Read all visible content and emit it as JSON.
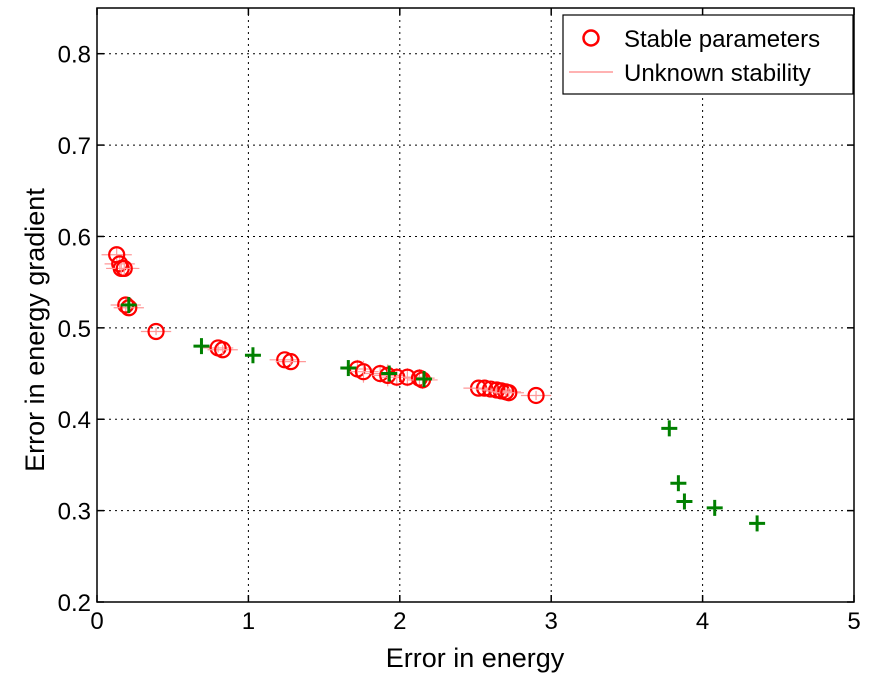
{
  "chart_data": {
    "type": "scatter",
    "xlabel": "Error in energy",
    "ylabel": "Error in energy gradient",
    "xlim": [
      0,
      5
    ],
    "ylim": [
      0.2,
      0.85
    ],
    "xticks": [
      0,
      1,
      2,
      3,
      4,
      5
    ],
    "yticks": [
      0.2,
      0.3,
      0.4,
      0.5,
      0.6,
      0.7,
      0.8
    ],
    "xtick_labels": [
      "0",
      "1",
      "2",
      "3",
      "4",
      "5"
    ],
    "ytick_labels": [
      "0.2",
      "0.3",
      "0.4",
      "0.5",
      "0.6",
      "0.7",
      "0.8"
    ],
    "grid": true,
    "legend_position": "top-right",
    "legend": [
      {
        "label": "Stable parameters",
        "marker": "circle",
        "color": "#ff0000"
      },
      {
        "label": "Unknown stability",
        "marker": "line",
        "color": "#ff9999"
      }
    ],
    "series": [
      {
        "name": "Stable parameters",
        "marker": "circle",
        "color": "#ff0000",
        "x": [
          0.13,
          0.15,
          0.16,
          0.18,
          0.19,
          0.21,
          0.39,
          0.8,
          0.83,
          1.24,
          1.28,
          1.72,
          1.76,
          1.87,
          1.92,
          1.98,
          2.05,
          2.13,
          2.15,
          2.52,
          2.56,
          2.6,
          2.64,
          2.67,
          2.7,
          2.72,
          2.9
        ],
        "y": [
          0.58,
          0.57,
          0.565,
          0.565,
          0.525,
          0.522,
          0.496,
          0.478,
          0.476,
          0.465,
          0.463,
          0.455,
          0.452,
          0.45,
          0.448,
          0.446,
          0.446,
          0.445,
          0.443,
          0.434,
          0.434,
          0.433,
          0.432,
          0.431,
          0.43,
          0.429,
          0.426
        ],
        "x_err": [
          0.1,
          0.1,
          0.1,
          0.1,
          0.1,
          0.1,
          0.1,
          0.1,
          0.1,
          0.1,
          0.1,
          0.1,
          0.1,
          0.1,
          0.1,
          0.1,
          0.1,
          0.1,
          0.1,
          0.1,
          0.1,
          0.1,
          0.1,
          0.1,
          0.1,
          0.1,
          0.1
        ],
        "y_err": [
          0.008,
          0.008,
          0.008,
          0.008,
          0.008,
          0.008,
          0.004,
          0.005,
          0.005,
          0.004,
          0.004,
          0.01,
          0.012,
          0.01,
          0.012,
          0.01,
          0.01,
          0.01,
          0.01,
          0.005,
          0.005,
          0.005,
          0.005,
          0.005,
          0.005,
          0.005,
          0.005
        ]
      },
      {
        "name": "",
        "marker": "plus",
        "color": "#008000",
        "x": [
          0.21,
          0.69,
          1.03,
          1.66,
          1.93,
          2.16,
          3.78,
          3.84,
          3.88,
          4.08,
          4.36
        ],
        "y": [
          0.525,
          0.48,
          0.47,
          0.456,
          0.45,
          0.444,
          0.39,
          0.33,
          0.31,
          0.303,
          0.286
        ]
      }
    ]
  }
}
